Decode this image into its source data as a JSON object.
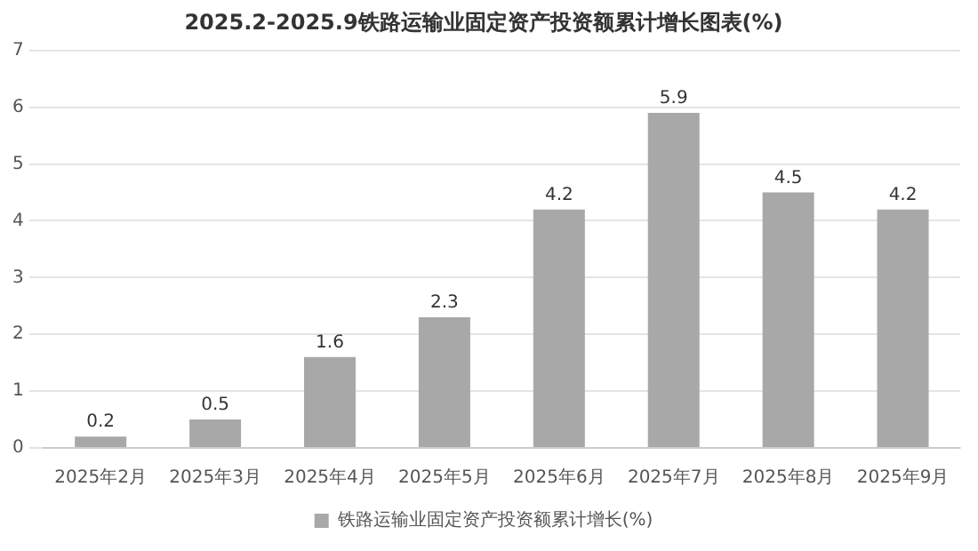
{
  "chart_data": {
    "type": "bar",
    "title": "2025.2-2025.9铁路运输业固定资产投资额累计增长图表(%)",
    "categories": [
      "2025年2月",
      "2025年3月",
      "2025年4月",
      "2025年5月",
      "2025年6月",
      "2025年7月",
      "2025年8月",
      "2025年9月"
    ],
    "series": [
      {
        "name": "铁路运输业固定资产投资额累计增长(%)",
        "color": "#a8a8a8",
        "values": [
          0.2,
          0.5,
          1.6,
          2.3,
          4.2,
          5.9,
          4.5,
          4.2
        ]
      }
    ],
    "ylim": [
      0,
      7
    ],
    "yticks": [
      0,
      1,
      2,
      3,
      4,
      5,
      6,
      7
    ],
    "grid": "y",
    "legend": "bottom",
    "data_labels": true
  }
}
